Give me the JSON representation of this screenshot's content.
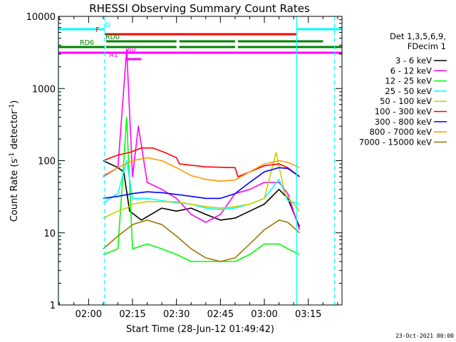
{
  "chart_data": {
    "type": "line",
    "title": "RHESSI Observing Summary Count Rates",
    "xlabel": "Start Time (28-Jun-12 01:49:42)",
    "ylabel": "Count Rate (s⁻¹ detector⁻¹)",
    "ylabel_main": "Count Rate (s",
    "ylabel_sup1": "-1",
    "ylabel_mid": " detector",
    "ylabel_sup2": "-1",
    "ylabel_end": ")",
    "yscale": "log",
    "ylim": [
      1,
      10000
    ],
    "y_ticks": [
      {
        "value": 1,
        "label": "1"
      },
      {
        "value": 10,
        "label": "10"
      },
      {
        "value": 100,
        "label": "100"
      },
      {
        "value": 1000,
        "label": "1000"
      },
      {
        "value": 10000,
        "label": "10000"
      }
    ],
    "xlim": [
      "01:49:42",
      "03:26:30"
    ],
    "x_ticks": [
      {
        "time": "02:00",
        "label": "02:00"
      },
      {
        "time": "02:15",
        "label": "02:15"
      },
      {
        "time": "02:30",
        "label": "02:30"
      },
      {
        "time": "02:45",
        "label": "02:45"
      },
      {
        "time": "03:00",
        "label": "03:00"
      },
      {
        "time": "03:15",
        "label": "03:15"
      }
    ],
    "legend_header": [
      "Det 1,3,5,6,9,",
      "FDecim 1"
    ],
    "legend_position": "right",
    "series": [
      {
        "name": "3 - 6 keV",
        "color": "#000000",
        "points": [
          [
            "02:05",
            100
          ],
          [
            "02:10",
            80
          ],
          [
            "02:12",
            70
          ],
          [
            "02:14",
            20
          ],
          [
            "02:18",
            15
          ],
          [
            "02:25",
            22
          ],
          [
            "02:30",
            20
          ],
          [
            "02:35",
            22
          ],
          [
            "02:40",
            18
          ],
          [
            "02:45",
            15
          ],
          [
            "02:50",
            16
          ],
          [
            "02:55",
            20
          ],
          [
            "03:00",
            25
          ],
          [
            "03:05",
            40
          ],
          [
            "03:08",
            30
          ],
          [
            "03:12",
            12
          ]
        ]
      },
      {
        "name": "6 - 12 keV",
        "color": "#ff00ff",
        "points": [
          [
            "02:05",
            60
          ],
          [
            "02:10",
            80
          ],
          [
            "02:13",
            3500
          ],
          [
            "02:15",
            60
          ],
          [
            "02:17",
            300
          ],
          [
            "02:20",
            50
          ],
          [
            "02:25",
            40
          ],
          [
            "02:30",
            30
          ],
          [
            "02:35",
            18
          ],
          [
            "02:40",
            14
          ],
          [
            "02:45",
            18
          ],
          [
            "02:50",
            35
          ],
          [
            "02:55",
            40
          ],
          [
            "03:00",
            50
          ],
          [
            "03:05",
            50
          ],
          [
            "03:08",
            35
          ],
          [
            "03:12",
            11
          ]
        ]
      },
      {
        "name": "12 - 25 keV",
        "color": "#00ff00",
        "points": [
          [
            "02:05",
            5
          ],
          [
            "02:10",
            6
          ],
          [
            "02:13",
            400
          ],
          [
            "02:15",
            6
          ],
          [
            "02:20",
            7
          ],
          [
            "02:25",
            6
          ],
          [
            "02:30",
            5
          ],
          [
            "02:35",
            4
          ],
          [
            "02:40",
            4
          ],
          [
            "02:45",
            4
          ],
          [
            "02:50",
            4
          ],
          [
            "02:55",
            5
          ],
          [
            "03:00",
            7
          ],
          [
            "03:05",
            7
          ],
          [
            "03:08",
            6
          ],
          [
            "03:12",
            5
          ]
        ]
      },
      {
        "name": "25 - 50 keV",
        "color": "#00ffff",
        "points": [
          [
            "02:05",
            26
          ],
          [
            "02:10",
            35
          ],
          [
            "02:13",
            100
          ],
          [
            "02:15",
            30
          ],
          [
            "02:20",
            30
          ],
          [
            "02:25",
            28
          ],
          [
            "02:30",
            26
          ],
          [
            "02:35",
            25
          ],
          [
            "02:40",
            22
          ],
          [
            "02:45",
            21
          ],
          [
            "02:50",
            22
          ],
          [
            "02:55",
            25
          ],
          [
            "03:00",
            30
          ],
          [
            "03:05",
            55
          ],
          [
            "03:08",
            28
          ],
          [
            "03:12",
            25
          ]
        ]
      },
      {
        "name": "50 - 100 keV",
        "color": "#cccc00",
        "points": [
          [
            "02:05",
            16
          ],
          [
            "02:10",
            20
          ],
          [
            "02:13",
            22
          ],
          [
            "02:15",
            25
          ],
          [
            "02:20",
            27
          ],
          [
            "02:25",
            27
          ],
          [
            "02:30",
            27
          ],
          [
            "02:35",
            25
          ],
          [
            "02:40",
            23
          ],
          [
            "02:45",
            22
          ],
          [
            "02:50",
            23
          ],
          [
            "02:55",
            25
          ],
          [
            "03:00",
            30
          ],
          [
            "03:04",
            130
          ],
          [
            "03:07",
            35
          ],
          [
            "03:12",
            20
          ]
        ]
      },
      {
        "name": "100 - 300 keV",
        "color": "#ff0000",
        "points": [
          [
            "02:05",
            100
          ],
          [
            "02:10",
            120
          ],
          [
            "02:14",
            130
          ],
          [
            "02:18",
            150
          ],
          [
            "02:22",
            150
          ],
          [
            "02:26",
            130
          ],
          [
            "02:30",
            110
          ],
          [
            "02:31",
            90
          ],
          [
            "02:40",
            82
          ],
          [
            "02:50",
            80
          ],
          [
            "02:51",
            60
          ],
          [
            "02:55",
            70
          ],
          [
            "03:00",
            85
          ],
          [
            "03:05",
            90
          ],
          [
            "03:08",
            80
          ],
          [
            "03:12",
            60
          ]
        ]
      },
      {
        "name": "300 - 800 keV",
        "color": "#0000ff",
        "points": [
          [
            "02:05",
            30
          ],
          [
            "02:10",
            32
          ],
          [
            "02:15",
            35
          ],
          [
            "02:20",
            37
          ],
          [
            "02:25",
            36
          ],
          [
            "02:30",
            34
          ],
          [
            "02:35",
            32
          ],
          [
            "02:40",
            30
          ],
          [
            "02:45",
            30
          ],
          [
            "02:50",
            35
          ],
          [
            "02:55",
            50
          ],
          [
            "03:00",
            70
          ],
          [
            "03:05",
            80
          ],
          [
            "03:08",
            78
          ],
          [
            "03:12",
            60
          ]
        ]
      },
      {
        "name": "800 - 7000 keV",
        "color": "#ff9900",
        "points": [
          [
            "02:05",
            62
          ],
          [
            "02:10",
            80
          ],
          [
            "02:15",
            100
          ],
          [
            "02:20",
            110
          ],
          [
            "02:25",
            100
          ],
          [
            "02:30",
            80
          ],
          [
            "02:35",
            62
          ],
          [
            "02:40",
            55
          ],
          [
            "02:45",
            52
          ],
          [
            "02:50",
            54
          ],
          [
            "02:55",
            70
          ],
          [
            "03:00",
            90
          ],
          [
            "03:05",
            100
          ],
          [
            "03:08",
            95
          ],
          [
            "03:12",
            80
          ]
        ]
      },
      {
        "name": "7000 - 15000 keV",
        "color": "#997700",
        "points": [
          [
            "02:05",
            6
          ],
          [
            "02:10",
            9
          ],
          [
            "02:15",
            13
          ],
          [
            "02:20",
            15
          ],
          [
            "02:25",
            13
          ],
          [
            "02:30",
            9
          ],
          [
            "02:35",
            6
          ],
          [
            "02:40",
            4.5
          ],
          [
            "02:45",
            4
          ],
          [
            "02:50",
            4.5
          ],
          [
            "02:55",
            7
          ],
          [
            "03:00",
            11
          ],
          [
            "03:05",
            15
          ],
          [
            "03:08",
            14
          ],
          [
            "03:12",
            10
          ]
        ]
      }
    ],
    "flags": [
      {
        "label": "N",
        "color": "#00ffff",
        "segments": [
          [
            "01:49:42",
            "02:05:30"
          ],
          [
            "03:11:00",
            "03:26:30"
          ]
        ]
      },
      {
        "label": "F",
        "color": "#ff0000",
        "segments": [
          [
            "02:05:30",
            "03:11:00"
          ]
        ]
      },
      {
        "label": "RD0",
        "color": "#008000",
        "segments": [
          [
            "02:06:00",
            "02:30:00"
          ],
          [
            "02:31:00",
            "02:50:00"
          ],
          [
            "02:51:00",
            "03:20:00"
          ]
        ]
      },
      {
        "label": "RD6",
        "color": "#008000",
        "segments": [
          [
            "01:49:42",
            "02:05:30"
          ],
          [
            "02:06:00",
            "02:30:00"
          ],
          [
            "02:31:00",
            "02:50:00"
          ],
          [
            "02:51:00",
            "03:26:30"
          ]
        ]
      },
      {
        "label": "",
        "color": "#ff00ff",
        "segments": [
          [
            "01:49:42",
            "03:26:30"
          ]
        ]
      },
      {
        "label": "A1",
        "color": "#ff00ff",
        "segments": [
          [
            "02:12:30",
            "02:15:00"
          ]
        ]
      },
      {
        "label": "A0",
        "color": "#ff00ff",
        "segments": [
          [
            "02:13:30",
            "02:18:00"
          ]
        ]
      }
    ],
    "vertical_lines": [
      {
        "time": "01:49:42",
        "style": "solid",
        "color": "#00ffff"
      },
      {
        "time": "02:05:30",
        "style": "dashed",
        "color": "#00ffff"
      },
      {
        "time": "03:11:00",
        "style": "solid",
        "color": "#00ffff"
      },
      {
        "time": "03:24:00",
        "style": "dashed",
        "color": "#00ffff"
      }
    ]
  },
  "footer": "23-Oct-2021 00:00"
}
